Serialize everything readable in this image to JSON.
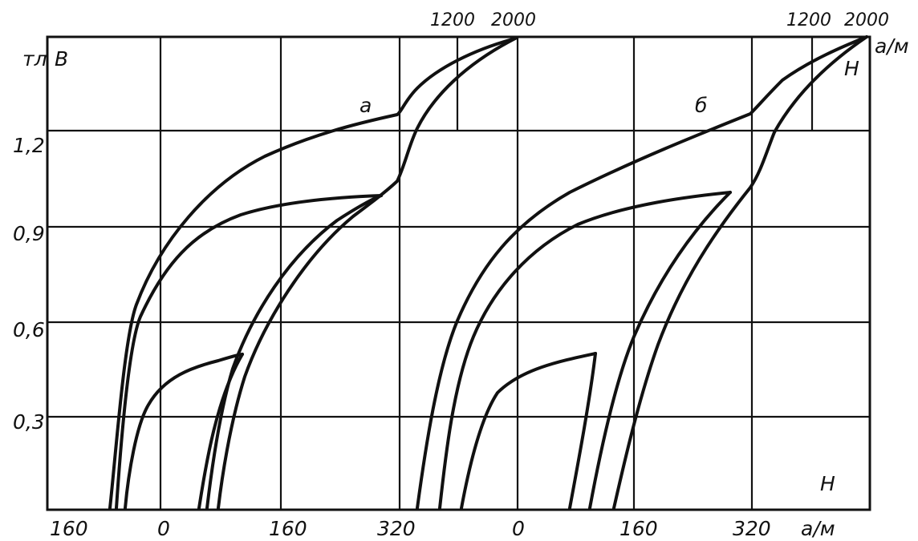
{
  "chart_data": {
    "type": "line",
    "title": "",
    "y_axis": {
      "label": "В",
      "unit": "тл",
      "ylim": [
        0,
        1.5
      ],
      "ticks": [
        {
          "value": 0.3,
          "label": "0,3"
        },
        {
          "value": 0.6,
          "label": "0,6"
        },
        {
          "value": 0.9,
          "label": "0,9"
        },
        {
          "value": 1.2,
          "label": "1,2"
        }
      ]
    },
    "x_axis": {
      "label": "H",
      "unit": "а/м",
      "bottom_ticks": [
        "160",
        "0",
        "160",
        "320",
        "0",
        "160",
        "320"
      ],
      "top_ticks_a": [
        "1200",
        "2000"
      ],
      "top_ticks_b": [
        "1200",
        "2000"
      ],
      "top_label": "H",
      "top_unit": "а/м"
    },
    "panels": [
      {
        "name": "а",
        "x_units": "H (а/м), linear −160…320, then 1200, 2000",
        "series": [
          {
            "x": [
              -75,
              -68,
              -60,
              -45,
              -20,
              0,
              40,
              100,
              180,
              260,
              320,
              380,
              470,
              1200,
              2000
            ],
            "y": [
              0,
              0.3,
              0.45,
              0.6,
              0.72,
              0.8,
              0.92,
              1.02,
              1.1,
              1.16,
              1.2,
              1.24,
              1.3,
              1.4,
              1.47
            ]
          },
          {
            "x": [
              -65,
              -55,
              -45,
              -20,
              0,
              40,
              100,
              160,
              220,
              280,
              320,
              1200,
              2000
            ],
            "y": [
              0,
              0.3,
              0.45,
              0.6,
              0.66,
              0.77,
              0.86,
              0.91,
              0.95,
              0.98,
              1.0,
              1.4,
              1.47
            ]
          },
          {
            "x": [
              -48,
              -35,
              -20,
              0,
              40,
              100
            ],
            "y": [
              0,
              0.2,
              0.3,
              0.37,
              0.44,
              0.5
            ]
          },
          {
            "x": [
              52,
              65,
              85,
              110,
              150,
              210,
              265
            ],
            "y": [
              0,
              0.25,
              0.4,
              0.55,
              0.7,
              0.86,
              1.0
            ]
          },
          {
            "x": [
              62,
              75,
              95,
              120,
              160,
              220,
              270
            ],
            "y": [
              0,
              0.22,
              0.38,
              0.52,
              0.67,
              0.84,
              1.0
            ]
          },
          {
            "x": [
              75,
              88,
              105,
              140,
              180,
              240,
              320,
              350,
              400,
              450,
              480,
              500,
              600,
              1200,
              2000
            ],
            "y": [
              0,
              0.2,
              0.33,
              0.55,
              0.7,
              0.87,
              1.04,
              1.1,
              1.14,
              1.18,
              1.22,
              1.26,
              1.3,
              1.4,
              1.47
            ]
          }
        ]
      },
      {
        "name": "б",
        "x_units": "H (а/м), linear −160…320, then 1200, 2000",
        "series": [
          {
            "x": [
              -135,
              -118,
              -100,
              -70,
              -40,
              0,
              60,
              150,
              240,
              320,
              370,
              430,
              480,
              520,
              1200,
              2000
            ],
            "y": [
              0,
              0.25,
              0.45,
              0.65,
              0.8,
              0.9,
              0.98,
              1.07,
              1.15,
              1.2,
              1.24,
              1.28,
              1.32,
              1.36,
              1.42,
              1.48
            ]
          },
          {
            "x": [
              -115,
              -95,
              -75,
              -40,
              0,
              60,
              130,
              200,
              280
            ],
            "y": [
              0,
              0.25,
              0.45,
              0.65,
              0.77,
              0.87,
              0.93,
              0.97,
              1.01
            ]
          },
          {
            "x": [
              -75,
              -60,
              -45,
              -20,
              0,
              30,
              60,
              100
            ],
            "y": [
              0,
              0.2,
              0.3,
              0.38,
              0.41,
              0.44,
              0.47,
              0.5
            ]
          },
          {
            "x": [
              70,
              80,
              92,
              100
            ],
            "y": [
              0,
              0.2,
              0.38,
              0.5
            ]
          },
          {
            "x": [
              100,
              115,
              135,
              160,
              200,
              250,
              290
            ],
            "y": [
              0,
              0.2,
              0.4,
              0.6,
              0.8,
              0.95,
              1.01
            ]
          },
          {
            "x": [
              128,
              145,
              165,
              190,
              230,
              270,
              320,
              360,
              420,
              470,
              520,
              1200,
              2000
            ],
            "y": [
              0,
              0.2,
              0.38,
              0.55,
              0.73,
              0.88,
              1.03,
              1.16,
              1.27,
              1.33,
              1.38,
              1.43,
              1.48
            ]
          }
        ]
      }
    ]
  }
}
